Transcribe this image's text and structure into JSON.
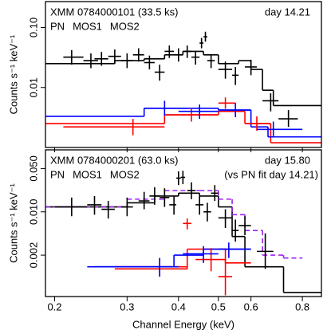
{
  "chart_data": [
    {
      "type": "errorbar",
      "xscale": "log",
      "yscale": "log",
      "title": "XMM 0784000101 (33.5 ks)",
      "subtitle": "day 14.21",
      "ylabel": "Counts s⁻¹ keV⁻¹",
      "xlim": [
        0.19,
        0.89
      ],
      "ylim": [
        0.001,
        0.27
      ],
      "yticks": [
        {
          "value": 0.01,
          "label": "0.01"
        },
        {
          "value": 0.1,
          "label": "0.10"
        }
      ],
      "series": [
        {
          "name": "PN",
          "color": "#000000",
          "x": [
            0.22,
            0.245,
            0.26,
            0.28,
            0.3,
            0.32,
            0.34,
            0.36,
            0.38,
            0.4,
            0.42,
            0.44,
            0.455,
            0.465,
            0.48,
            0.52,
            0.55,
            0.6,
            0.67,
            0.74
          ],
          "xlo": [
            0.21,
            0.235,
            0.25,
            0.27,
            0.29,
            0.31,
            0.33,
            0.35,
            0.37,
            0.39,
            0.41,
            0.43,
            0.45,
            0.46,
            0.47,
            0.5,
            0.54,
            0.58,
            0.64,
            0.7
          ],
          "xhi": [
            0.235,
            0.255,
            0.27,
            0.29,
            0.31,
            0.33,
            0.35,
            0.37,
            0.39,
            0.41,
            0.43,
            0.45,
            0.46,
            0.47,
            0.49,
            0.54,
            0.56,
            0.62,
            0.7,
            0.78
          ],
          "values": [
            0.032,
            0.028,
            0.03,
            0.033,
            0.028,
            0.035,
            0.026,
            0.018,
            0.04,
            0.035,
            0.04,
            0.032,
            0.055,
            0.07,
            0.028,
            0.02,
            0.016,
            0.022,
            0.006,
            0.003
          ],
          "ylo": [
            0.024,
            0.021,
            0.023,
            0.025,
            0.021,
            0.027,
            0.02,
            0.013,
            0.031,
            0.027,
            0.031,
            0.024,
            0.045,
            0.058,
            0.021,
            0.014,
            0.011,
            0.016,
            0.004,
            0.0022
          ],
          "yhi": [
            0.042,
            0.037,
            0.039,
            0.043,
            0.037,
            0.045,
            0.034,
            0.024,
            0.05,
            0.045,
            0.05,
            0.041,
            0.067,
            0.085,
            0.036,
            0.027,
            0.022,
            0.029,
            0.008,
            0.0042
          ]
        },
        {
          "name": "MOS1",
          "color": "#ff0000",
          "x": [
            0.31,
            0.43,
            0.52,
            0.62
          ],
          "xlo": [
            0.21,
            0.37,
            0.5,
            0.58
          ],
          "xhi": [
            0.37,
            0.5,
            0.55,
            0.67
          ],
          "values": [
            0.0022,
            0.0035,
            0.0055,
            0.0025
          ],
          "ylo": [
            0.0016,
            0.0027,
            0.0044,
            0.0019
          ],
          "yhi": [
            0.003,
            0.0045,
            0.0068,
            0.0033
          ]
        },
        {
          "name": "MOS2",
          "color": "#0000ff",
          "x": [
            0.37,
            0.45,
            0.55,
            0.68
          ],
          "xlo": [
            0.33,
            0.4,
            0.5,
            0.62
          ],
          "xhi": [
            0.42,
            0.5,
            0.6,
            0.8
          ],
          "values": [
            0.0045,
            0.004,
            0.0042,
            0.002
          ],
          "ylo": [
            0.0034,
            0.003,
            0.0032,
            0.0015
          ],
          "yhi": [
            0.006,
            0.0052,
            0.0055,
            0.0027
          ]
        }
      ],
      "models": [
        {
          "color": "#000000",
          "dashed": false,
          "edges": [
            0.19,
            0.28,
            0.33,
            0.37,
            0.41,
            0.46,
            0.5,
            0.56,
            0.6,
            0.64,
            0.68,
            0.89
          ],
          "values": [
            0.025,
            0.028,
            0.03,
            0.035,
            0.04,
            0.035,
            0.025,
            0.028,
            0.02,
            0.009,
            0.005
          ]
        },
        {
          "color": "#ff0000",
          "dashed": false,
          "edges": [
            0.19,
            0.37,
            0.5,
            0.58,
            0.67,
            0.89
          ],
          "values": [
            0.0025,
            0.0035,
            0.004,
            0.0025,
            0.0012
          ]
        },
        {
          "color": "#0000ff",
          "dashed": false,
          "edges": [
            0.19,
            0.33,
            0.5,
            0.6,
            0.66,
            0.89
          ],
          "values": [
            0.0033,
            0.0045,
            0.0042,
            0.0022,
            0.0015
          ]
        }
      ]
    },
    {
      "type": "errorbar",
      "xscale": "log",
      "yscale": "log",
      "title": "XMM 0784000201 (63.0 ks)",
      "subtitle": "day 15.80",
      "annotation": "(vs PN fit day 14.21)",
      "annotation_color": "#a020f0",
      "ylabel": "Counts s⁻¹ keV⁻¹",
      "xlabel": "Channel Energy (keV)",
      "xlim": [
        0.19,
        0.89
      ],
      "ylim": [
        0.00043,
        0.1
      ],
      "xticks": [
        0.2,
        0.3,
        0.4,
        0.5,
        0.6,
        0.8
      ],
      "yticks": [
        0.002,
        {
          "value": 0.01,
          "label": "0.010"
        },
        {
          "value": 0.05,
          "label": "0.050"
        }
      ],
      "series": [
        {
          "name": "PN",
          "color": "#000000",
          "x": [
            0.22,
            0.25,
            0.27,
            0.3,
            0.33,
            0.35,
            0.37,
            0.39,
            0.4,
            0.41,
            0.43,
            0.45,
            0.47,
            0.49,
            0.52,
            0.55,
            0.58,
            0.65
          ],
          "xlo": [
            0.2,
            0.24,
            0.26,
            0.29,
            0.32,
            0.34,
            0.36,
            0.38,
            0.395,
            0.405,
            0.42,
            0.44,
            0.46,
            0.48,
            0.5,
            0.54,
            0.56,
            0.62
          ],
          "xhi": [
            0.24,
            0.26,
            0.28,
            0.31,
            0.34,
            0.36,
            0.38,
            0.395,
            0.405,
            0.415,
            0.44,
            0.46,
            0.48,
            0.5,
            0.54,
            0.56,
            0.6,
            0.68
          ],
          "values": [
            0.012,
            0.013,
            0.011,
            0.012,
            0.015,
            0.018,
            0.017,
            0.013,
            0.035,
            0.036,
            0.022,
            0.013,
            0.01,
            0.02,
            0.008,
            0.005,
            0.006,
            0.0023
          ],
          "ylo": [
            0.0085,
            0.009,
            0.0078,
            0.0085,
            0.011,
            0.013,
            0.012,
            0.009,
            0.027,
            0.028,
            0.016,
            0.009,
            0.007,
            0.015,
            0.0055,
            0.0033,
            0.0042,
            0.0012
          ],
          "yhi": [
            0.017,
            0.018,
            0.015,
            0.017,
            0.021,
            0.025,
            0.024,
            0.018,
            0.045,
            0.046,
            0.03,
            0.018,
            0.014,
            0.027,
            0.011,
            0.0075,
            0.0085,
            0.0045
          ]
        },
        {
          "name": "MOS1",
          "color": "#ff0000",
          "x": [
            0.36,
            0.42,
            0.48,
            0.52
          ],
          "xlo": [
            0.28,
            0.41,
            0.44,
            0.5
          ],
          "xhi": [
            0.42,
            0.43,
            0.52,
            0.54
          ],
          "values": [
            0.0013,
            0.0065,
            0.0017,
            0.0009
          ],
          "ylo": [
            0.0009,
            0.0052,
            0.0011,
            0.00045
          ],
          "yhi": [
            0.0018,
            0.0078,
            0.0026,
            0.0017
          ]
        },
        {
          "name": "MOS2",
          "color": "#0000ff",
          "x": [
            0.36,
            0.46,
            0.53
          ],
          "xlo": [
            0.25,
            0.41,
            0.5
          ],
          "xhi": [
            0.4,
            0.5,
            0.6
          ],
          "values": [
            0.0013,
            0.0021,
            0.0025
          ],
          "ylo": [
            0.0009,
            0.0015,
            0.0018
          ],
          "yhi": [
            0.0018,
            0.0028,
            0.0032
          ]
        }
      ],
      "models": [
        {
          "color": "#000000",
          "dashed": false,
          "edges": [
            0.19,
            0.3,
            0.35,
            0.4,
            0.45,
            0.5,
            0.54,
            0.58,
            0.72,
            0.89
          ],
          "values": [
            0.012,
            0.014,
            0.018,
            0.02,
            0.018,
            0.012,
            0.004,
            0.0013,
            0.0005
          ]
        },
        {
          "color": "#a020f0",
          "dashed": true,
          "edges": [
            0.19,
            0.3,
            0.37,
            0.45,
            0.5,
            0.54,
            0.58,
            0.64,
            0.72,
            0.8
          ],
          "values": [
            0.012,
            0.016,
            0.022,
            0.022,
            0.016,
            0.009,
            0.005,
            0.002,
            0.0018
          ]
        },
        {
          "color": "#ff0000",
          "dashed": false,
          "edges": [
            0.28,
            0.42,
            0.44,
            0.52,
            0.6
          ],
          "values": [
            0.0012,
            0.0025,
            0.0025,
            0.0015
          ]
        },
        {
          "color": "#0000ff",
          "dashed": false,
          "edges": [
            0.24,
            0.39,
            0.46,
            0.6
          ],
          "values": [
            0.0013,
            0.002,
            0.0025
          ]
        }
      ]
    }
  ]
}
